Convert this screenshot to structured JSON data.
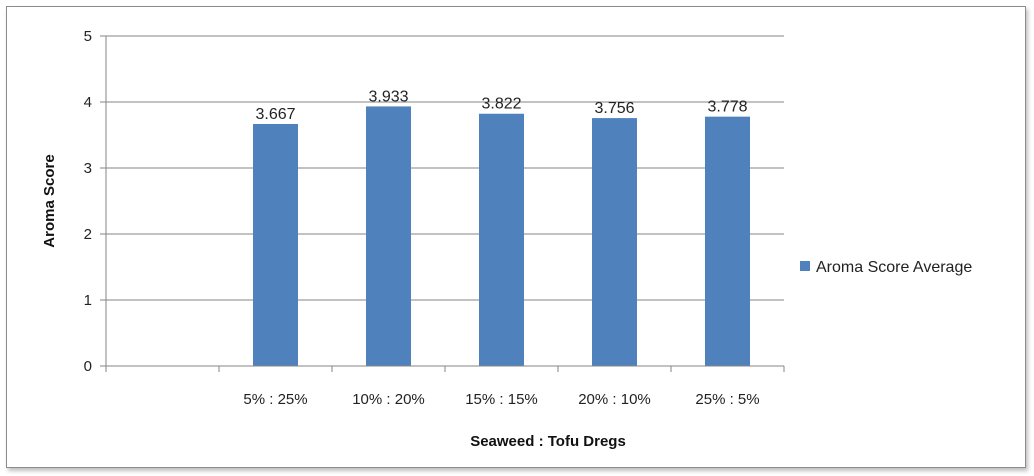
{
  "chart_data": {
    "type": "bar",
    "categories": [
      "5% : 25%",
      "10% : 20%",
      "15% : 15%",
      "20% : 10%",
      "25% : 5%"
    ],
    "series": [
      {
        "name": "Aroma Score Average",
        "values": [
          3.667,
          3.933,
          3.822,
          3.756,
          3.778
        ],
        "labels": [
          "3.667",
          "3.933",
          "3.822",
          "3.756",
          "3.778"
        ],
        "color": "#4f81bd"
      }
    ],
    "xlabel": "Seaweed : Tofu Dregs",
    "ylabel": "Aroma Score",
    "ylim": [
      0,
      5
    ],
    "yticks": [
      "0",
      "1",
      "2",
      "3",
      "4",
      "5"
    ],
    "grid": true,
    "legend_position": "right"
  }
}
